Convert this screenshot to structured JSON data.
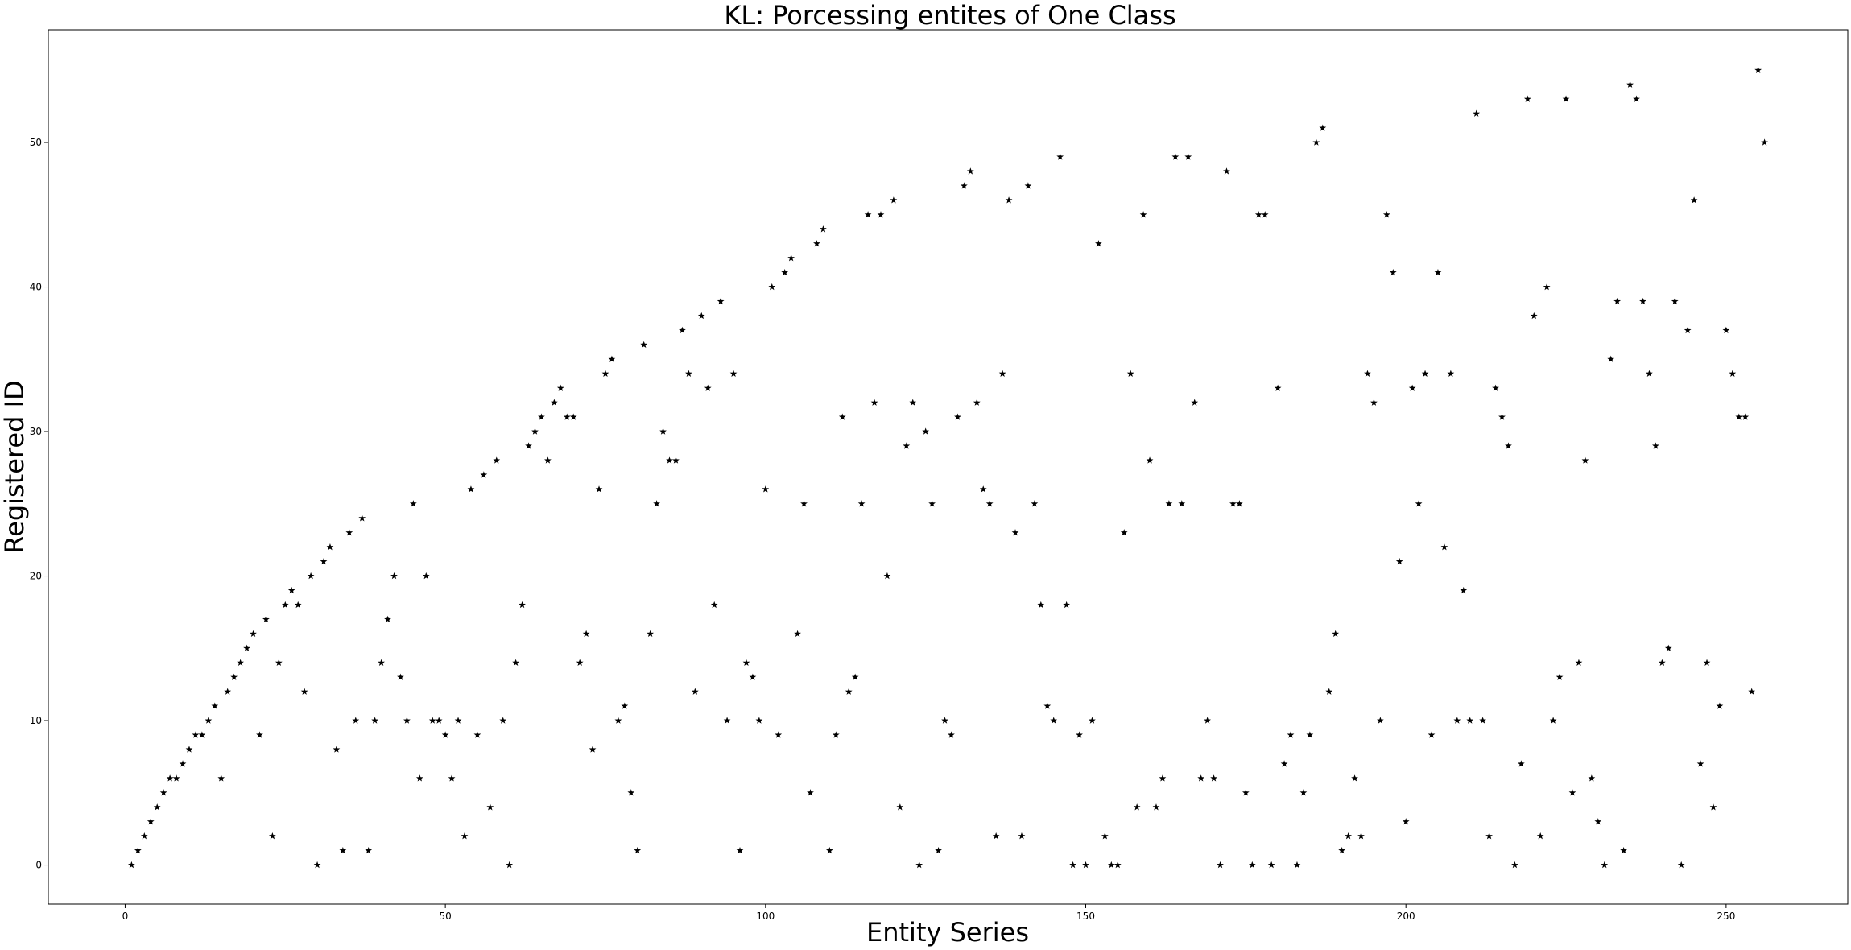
{
  "chart_data": {
    "type": "scatter",
    "title": "KL: Porcessing entites of One Class",
    "xlabel": "Entity Series",
    "ylabel": "Registered ID",
    "xlim": [
      -12,
      269
    ],
    "ylim": [
      -2.7,
      57.8
    ],
    "xticks": [
      0,
      50,
      100,
      150,
      200,
      250
    ],
    "yticks": [
      0,
      10,
      20,
      30,
      40,
      50
    ],
    "grid": false,
    "marker": "star",
    "marker_color": "#000000",
    "points": [
      [
        1,
        0
      ],
      [
        2,
        1
      ],
      [
        3,
        2
      ],
      [
        4,
        3
      ],
      [
        5,
        4
      ],
      [
        6,
        5
      ],
      [
        7,
        6
      ],
      [
        8,
        6
      ],
      [
        9,
        7
      ],
      [
        10,
        8
      ],
      [
        11,
        9
      ],
      [
        12,
        9
      ],
      [
        13,
        10
      ],
      [
        14,
        11
      ],
      [
        15,
        6
      ],
      [
        16,
        12
      ],
      [
        17,
        13
      ],
      [
        18,
        14
      ],
      [
        19,
        15
      ],
      [
        20,
        16
      ],
      [
        21,
        9
      ],
      [
        22,
        17
      ],
      [
        23,
        2
      ],
      [
        24,
        14
      ],
      [
        25,
        18
      ],
      [
        26,
        19
      ],
      [
        27,
        18
      ],
      [
        28,
        12
      ],
      [
        29,
        20
      ],
      [
        30,
        0
      ],
      [
        31,
        21
      ],
      [
        32,
        22
      ],
      [
        33,
        8
      ],
      [
        34,
        1
      ],
      [
        35,
        23
      ],
      [
        36,
        10
      ],
      [
        37,
        24
      ],
      [
        38,
        1
      ],
      [
        39,
        10
      ],
      [
        40,
        14
      ],
      [
        41,
        17
      ],
      [
        42,
        20
      ],
      [
        43,
        13
      ],
      [
        44,
        10
      ],
      [
        45,
        25
      ],
      [
        46,
        6
      ],
      [
        47,
        20
      ],
      [
        48,
        10
      ],
      [
        49,
        10
      ],
      [
        50,
        9
      ],
      [
        51,
        6
      ],
      [
        52,
        10
      ],
      [
        53,
        2
      ],
      [
        54,
        26
      ],
      [
        55,
        9
      ],
      [
        56,
        27
      ],
      [
        57,
        4
      ],
      [
        58,
        28
      ],
      [
        59,
        10
      ],
      [
        60,
        0
      ],
      [
        61,
        14
      ],
      [
        62,
        18
      ],
      [
        63,
        29
      ],
      [
        64,
        30
      ],
      [
        65,
        31
      ],
      [
        66,
        28
      ],
      [
        67,
        32
      ],
      [
        68,
        33
      ],
      [
        69,
        31
      ],
      [
        70,
        31
      ],
      [
        71,
        14
      ],
      [
        72,
        16
      ],
      [
        73,
        8
      ],
      [
        74,
        26
      ],
      [
        75,
        34
      ],
      [
        76,
        35
      ],
      [
        77,
        10
      ],
      [
        78,
        11
      ],
      [
        79,
        5
      ],
      [
        80,
        1
      ],
      [
        81,
        36
      ],
      [
        82,
        16
      ],
      [
        83,
        25
      ],
      [
        84,
        30
      ],
      [
        85,
        28
      ],
      [
        86,
        28
      ],
      [
        87,
        37
      ],
      [
        88,
        34
      ],
      [
        89,
        12
      ],
      [
        90,
        38
      ],
      [
        91,
        33
      ],
      [
        92,
        18
      ],
      [
        93,
        39
      ],
      [
        94,
        10
      ],
      [
        95,
        34
      ],
      [
        96,
        1
      ],
      [
        97,
        14
      ],
      [
        98,
        13
      ],
      [
        99,
        10
      ],
      [
        100,
        26
      ],
      [
        101,
        40
      ],
      [
        102,
        9
      ],
      [
        103,
        41
      ],
      [
        104,
        42
      ],
      [
        105,
        16
      ],
      [
        106,
        25
      ],
      [
        107,
        5
      ],
      [
        108,
        43
      ],
      [
        109,
        44
      ],
      [
        110,
        1
      ],
      [
        111,
        9
      ],
      [
        112,
        31
      ],
      [
        113,
        12
      ],
      [
        114,
        13
      ],
      [
        115,
        25
      ],
      [
        116,
        45
      ],
      [
        117,
        32
      ],
      [
        118,
        45
      ],
      [
        119,
        20
      ],
      [
        120,
        46
      ],
      [
        121,
        4
      ],
      [
        122,
        29
      ],
      [
        123,
        32
      ],
      [
        124,
        0
      ],
      [
        125,
        30
      ],
      [
        126,
        25
      ],
      [
        127,
        1
      ],
      [
        128,
        10
      ],
      [
        129,
        9
      ],
      [
        130,
        31
      ],
      [
        131,
        47
      ],
      [
        132,
        48
      ],
      [
        133,
        32
      ],
      [
        134,
        26
      ],
      [
        135,
        25
      ],
      [
        136,
        2
      ],
      [
        137,
        34
      ],
      [
        138,
        46
      ],
      [
        139,
        23
      ],
      [
        140,
        2
      ],
      [
        141,
        47
      ],
      [
        142,
        25
      ],
      [
        143,
        18
      ],
      [
        144,
        11
      ],
      [
        145,
        10
      ],
      [
        146,
        49
      ],
      [
        147,
        18
      ],
      [
        148,
        0
      ],
      [
        149,
        9
      ],
      [
        150,
        0
      ],
      [
        151,
        10
      ],
      [
        152,
        43
      ],
      [
        153,
        2
      ],
      [
        154,
        0
      ],
      [
        155,
        0
      ],
      [
        156,
        23
      ],
      [
        157,
        34
      ],
      [
        158,
        4
      ],
      [
        159,
        45
      ],
      [
        160,
        28
      ],
      [
        161,
        4
      ],
      [
        162,
        6
      ],
      [
        163,
        25
      ],
      [
        164,
        49
      ],
      [
        165,
        25
      ],
      [
        166,
        49
      ],
      [
        167,
        32
      ],
      [
        168,
        6
      ],
      [
        169,
        10
      ],
      [
        170,
        6
      ],
      [
        171,
        0
      ],
      [
        172,
        48
      ],
      [
        173,
        25
      ],
      [
        174,
        25
      ],
      [
        175,
        5
      ],
      [
        176,
        0
      ],
      [
        177,
        45
      ],
      [
        178,
        45
      ],
      [
        179,
        0
      ],
      [
        180,
        33
      ],
      [
        181,
        7
      ],
      [
        182,
        9
      ],
      [
        183,
        0
      ],
      [
        184,
        5
      ],
      [
        185,
        9
      ],
      [
        186,
        50
      ],
      [
        187,
        51
      ],
      [
        188,
        12
      ],
      [
        189,
        16
      ],
      [
        190,
        1
      ],
      [
        191,
        2
      ],
      [
        192,
        6
      ],
      [
        193,
        2
      ],
      [
        194,
        34
      ],
      [
        195,
        32
      ],
      [
        196,
        10
      ],
      [
        197,
        45
      ],
      [
        198,
        41
      ],
      [
        199,
        21
      ],
      [
        200,
        3
      ],
      [
        201,
        33
      ],
      [
        202,
        25
      ],
      [
        203,
        34
      ],
      [
        204,
        9
      ],
      [
        205,
        41
      ],
      [
        206,
        22
      ],
      [
        207,
        34
      ],
      [
        208,
        10
      ],
      [
        209,
        19
      ],
      [
        210,
        10
      ],
      [
        211,
        52
      ],
      [
        212,
        10
      ],
      [
        213,
        2
      ],
      [
        214,
        33
      ],
      [
        215,
        31
      ],
      [
        216,
        29
      ],
      [
        217,
        0
      ],
      [
        218,
        7
      ],
      [
        219,
        53
      ],
      [
        220,
        38
      ],
      [
        221,
        2
      ],
      [
        222,
        40
      ],
      [
        223,
        10
      ],
      [
        224,
        13
      ],
      [
        225,
        53
      ],
      [
        226,
        5
      ],
      [
        227,
        14
      ],
      [
        228,
        28
      ],
      [
        229,
        6
      ],
      [
        230,
        3
      ],
      [
        231,
        0
      ],
      [
        232,
        35
      ],
      [
        233,
        39
      ],
      [
        234,
        1
      ],
      [
        235,
        54
      ],
      [
        236,
        53
      ],
      [
        237,
        39
      ],
      [
        238,
        34
      ],
      [
        239,
        29
      ],
      [
        240,
        14
      ],
      [
        241,
        15
      ],
      [
        242,
        39
      ],
      [
        243,
        0
      ],
      [
        244,
        37
      ],
      [
        245,
        46
      ],
      [
        246,
        7
      ],
      [
        247,
        14
      ],
      [
        248,
        4
      ],
      [
        249,
        11
      ],
      [
        250,
        37
      ],
      [
        251,
        34
      ],
      [
        252,
        31
      ],
      [
        253,
        31
      ],
      [
        254,
        12
      ],
      [
        255,
        55
      ],
      [
        256,
        50
      ]
    ]
  }
}
